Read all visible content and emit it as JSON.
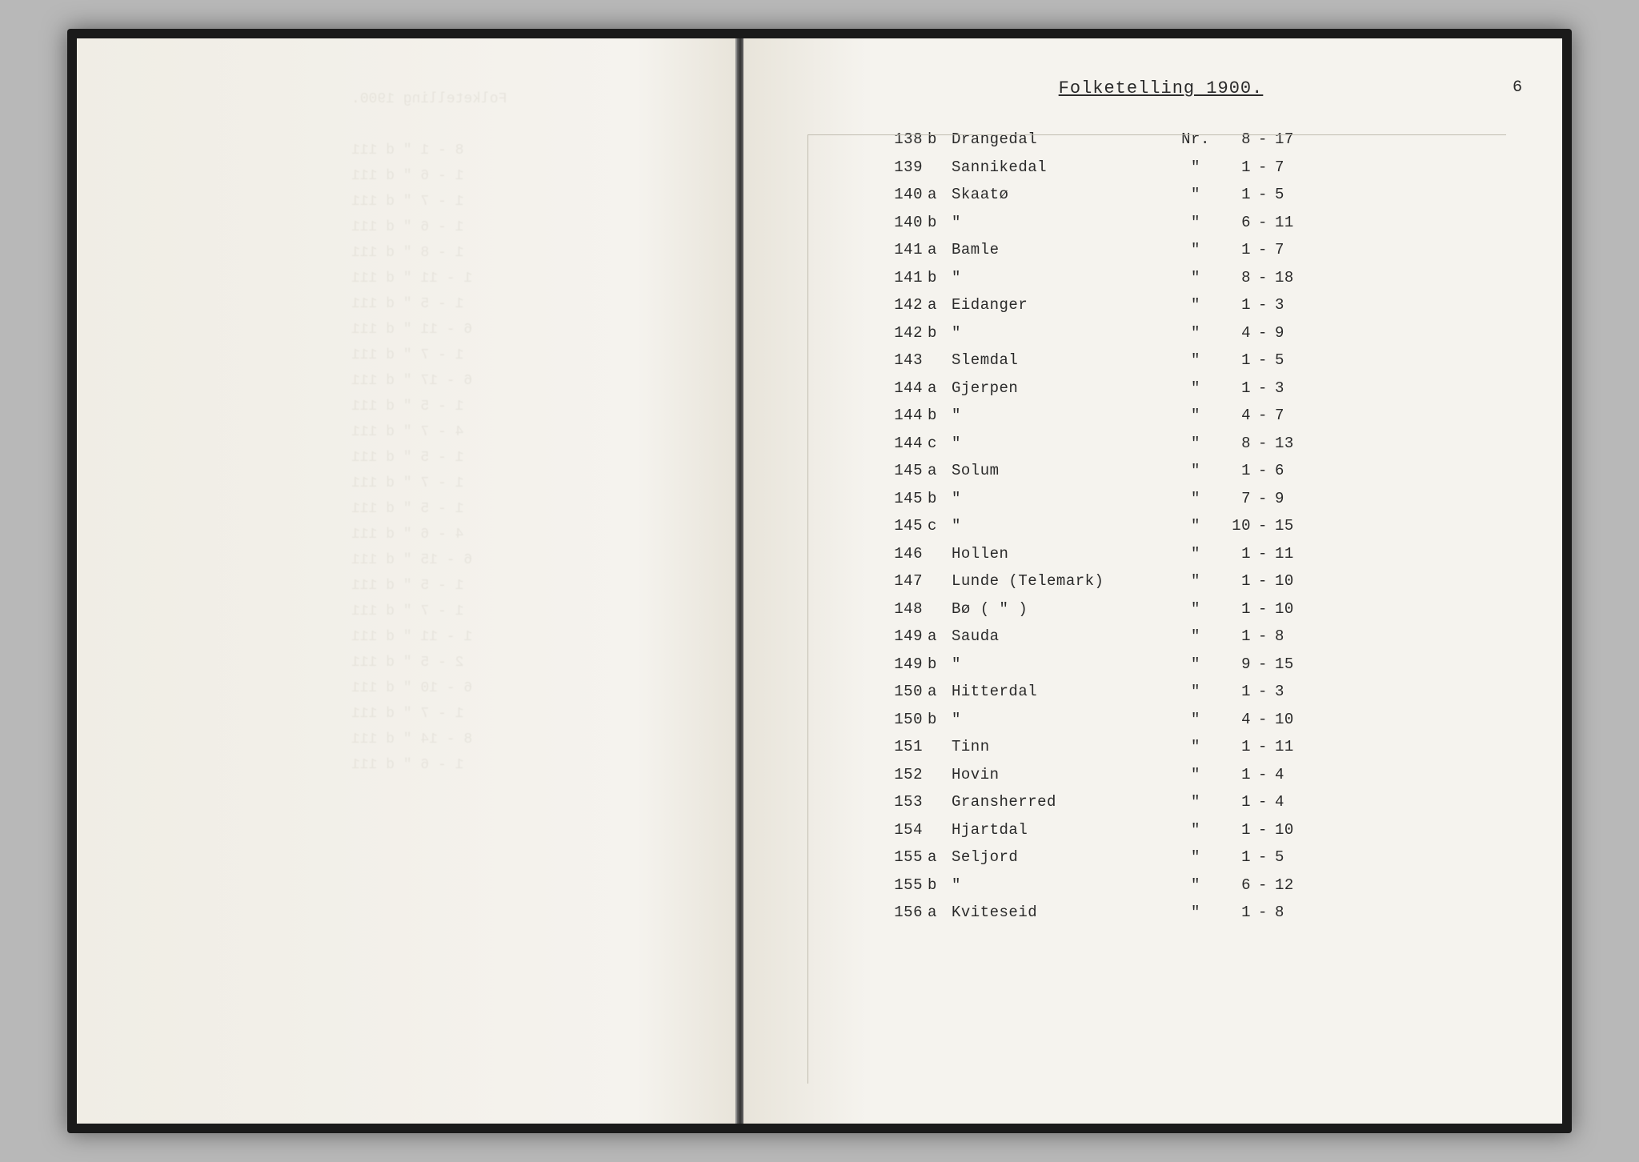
{
  "title": "Folketelling 1900.",
  "page_number": "6",
  "background_color": "#b8b8b8",
  "paper_color": "#f5f3ee",
  "text_color": "#2a2a2a",
  "font_family": "Courier New",
  "font_size_body": 19,
  "font_size_title": 22,
  "row_height": 34.5,
  "columns": [
    "num",
    "sub",
    "name",
    "nr",
    "from",
    "dash",
    "to"
  ],
  "rows": [
    {
      "num": "138",
      "sub": "b",
      "name": "Drangedal",
      "nr": "Nr.",
      "from": "8",
      "to": "17"
    },
    {
      "num": "139",
      "sub": "",
      "name": "Sannikedal",
      "nr": "\"",
      "from": "1",
      "to": "7"
    },
    {
      "num": "140",
      "sub": "a",
      "name": "Skaatø",
      "nr": "\"",
      "from": "1",
      "to": "5"
    },
    {
      "num": "140",
      "sub": "b",
      "name": "\"",
      "nr": "\"",
      "from": "6",
      "to": "11"
    },
    {
      "num": "141",
      "sub": "a",
      "name": "Bamle",
      "nr": "\"",
      "from": "1",
      "to": "7"
    },
    {
      "num": "141",
      "sub": "b",
      "name": "\"",
      "nr": "\"",
      "from": "8",
      "to": "18"
    },
    {
      "num": "142",
      "sub": "a",
      "name": "Eidanger",
      "nr": "\"",
      "from": "1",
      "to": "3"
    },
    {
      "num": "142",
      "sub": "b",
      "name": "\"",
      "nr": "\"",
      "from": "4",
      "to": "9"
    },
    {
      "num": "143",
      "sub": "",
      "name": "Slemdal",
      "nr": "\"",
      "from": "1",
      "to": "5"
    },
    {
      "num": "144",
      "sub": "a",
      "name": "Gjerpen",
      "nr": "\"",
      "from": "1",
      "to": "3"
    },
    {
      "num": "144",
      "sub": "b",
      "name": "\"",
      "nr": "\"",
      "from": "4",
      "to": "7"
    },
    {
      "num": "144",
      "sub": "c",
      "name": "\"",
      "nr": "\"",
      "from": "8",
      "to": "13"
    },
    {
      "num": "145",
      "sub": "a",
      "name": "Solum",
      "nr": "\"",
      "from": "1",
      "to": "6"
    },
    {
      "num": "145",
      "sub": "b",
      "name": "\"",
      "nr": "\"",
      "from": "7",
      "to": "9"
    },
    {
      "num": "145",
      "sub": "c",
      "name": "\"",
      "nr": "\"",
      "from": "10",
      "to": "15"
    },
    {
      "num": "146",
      "sub": "",
      "name": "Hollen",
      "nr": "\"",
      "from": "1",
      "to": "11"
    },
    {
      "num": "147",
      "sub": "",
      "name": "Lunde (Telemark)",
      "nr": "\"",
      "from": "1",
      "to": "10"
    },
    {
      "num": "148",
      "sub": "",
      "name": "Bø   (   \"   )",
      "nr": "\"",
      "from": "1",
      "to": "10"
    },
    {
      "num": "149",
      "sub": "a",
      "name": "Sauda",
      "nr": "\"",
      "from": "1",
      "to": "8"
    },
    {
      "num": "149",
      "sub": "b",
      "name": "\"",
      "nr": "\"",
      "from": "9",
      "to": "15"
    },
    {
      "num": "150",
      "sub": "a",
      "name": "Hitterdal",
      "nr": "\"",
      "from": "1",
      "to": "3"
    },
    {
      "num": "150",
      "sub": "b",
      "name": "\"",
      "nr": "\"",
      "from": "4",
      "to": "10"
    },
    {
      "num": "151",
      "sub": "",
      "name": "Tinn",
      "nr": "\"",
      "from": "1",
      "to": "11"
    },
    {
      "num": "152",
      "sub": "",
      "name": "Hovin",
      "nr": "\"",
      "from": "1",
      "to": "4"
    },
    {
      "num": "153",
      "sub": "",
      "name": "Gransherred",
      "nr": "\"",
      "from": "1",
      "to": "4"
    },
    {
      "num": "154",
      "sub": "",
      "name": "Hjartdal",
      "nr": "\"",
      "from": "1",
      "to": "10"
    },
    {
      "num": "155",
      "sub": "a",
      "name": "Seljord",
      "nr": "\"",
      "from": "1",
      "to": "5"
    },
    {
      "num": "155",
      "sub": "b",
      "name": "\"",
      "nr": "\"",
      "from": "6",
      "to": "12"
    },
    {
      "num": "156",
      "sub": "a",
      "name": "Kviteseid",
      "nr": "\"",
      "from": "1",
      "to": "8"
    }
  ],
  "left_bleed_lines": [
    "Folketelling 1900.",
    "",
    "8 - 1  \"    d 111",
    "1 - 6  \"    d 111",
    "1 - 7  \"    d 111",
    "1 - 6  \"    d 111",
    "1 - 8  \"    d 111",
    "1 - 11 \"    d 111",
    "1 - 5  \"    d 111",
    "6 - 11 \"    d 111",
    "1 - 7  \"    d 111",
    "6 - 17 \"    d 111",
    "1 - 5  \"    d 111",
    "4 - 7  \"    d 111",
    "1 - 5  \"    d 111",
    "1 - 7  \"    d 111",
    "1 - 5  \"    d 111",
    "4 - 6  \"    d 111",
    "6 - 15 \"    d 111",
    "1 - 5  \"    d 111",
    "1 - 7  \"    d 111",
    "1 - 11 \"    d 111",
    "2 - 5  \"    d 111",
    "6 - 10 \"    d 111",
    "1 - 7  \"    d 111",
    "8 - 14 \"    d 111",
    "1 - 6  \"    d 111"
  ]
}
